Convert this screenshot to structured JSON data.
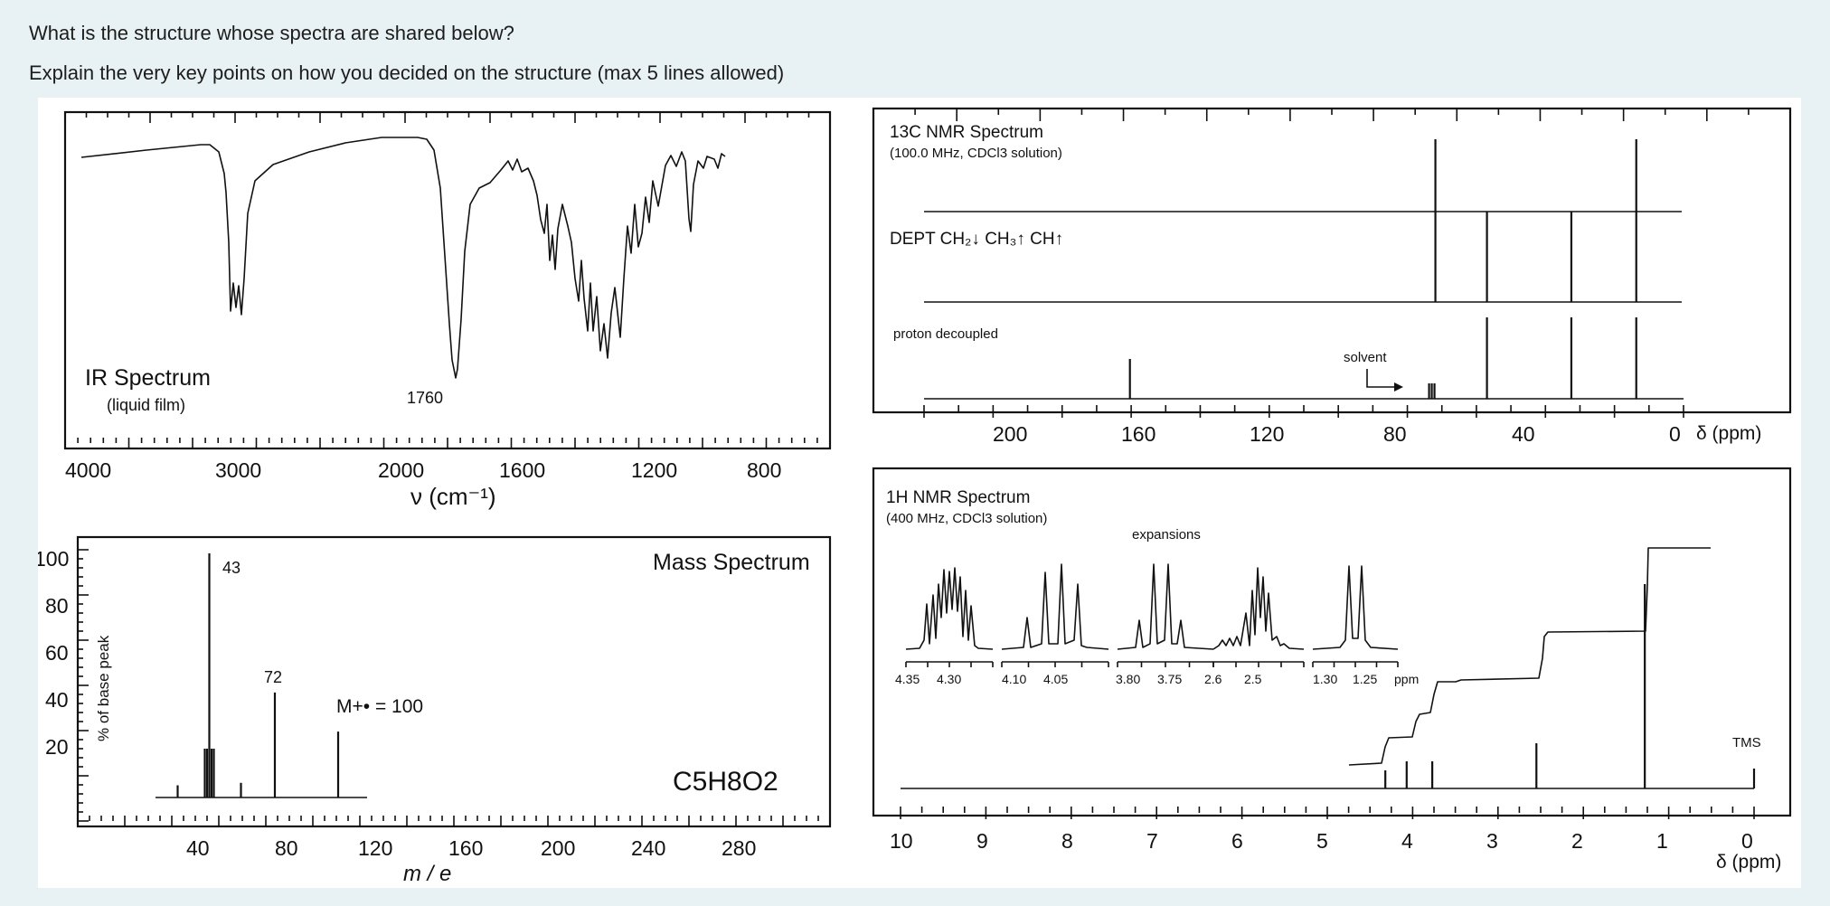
{
  "question": {
    "line1": "What is the structure whose spectra are shared below?",
    "line2": "Explain the very key points on how you decided on the structure (max 5 lines allowed)"
  },
  "ir": {
    "title": "IR Spectrum",
    "subtitle": "(liquid film)",
    "annotation": "1760",
    "xlabel": "ν  (cm⁻¹)",
    "x_ticks": [
      "4000",
      "3000",
      "2000",
      "1600",
      "1200",
      "800"
    ]
  },
  "mass": {
    "title": "Mass Spectrum",
    "ylabel": "% of base peak",
    "xlabel": "m / e",
    "formula": "C5H8O2",
    "molecular_ion_label": "M+• = 100",
    "y_ticks": [
      "100",
      "80",
      "60",
      "40",
      "20"
    ],
    "x_ticks": [
      "40",
      "80",
      "120",
      "160",
      "200",
      "240",
      "280"
    ],
    "peak_labels": [
      "43",
      "72"
    ]
  },
  "c13": {
    "title": "13C NMR Spectrum",
    "subtitle": "(100.0 MHz, CDCl3 solution)",
    "dept_label": "DEPT  CH₂↓  CH₃↑  CH↑",
    "decoupled_label": "proton decoupled",
    "solvent_label": "solvent",
    "x_ticks": [
      "200",
      "160",
      "120",
      "80",
      "40",
      "0"
    ],
    "axis_unit": "δ (ppm)"
  },
  "h1": {
    "title": "1H NMR Spectrum",
    "subtitle": "(400 MHz, CDCl3 solution)",
    "expansions_label": "expansions",
    "expansion_ticks": [
      "4.35",
      "4.30",
      "4.10",
      "4.05",
      "3.80",
      "3.75",
      "2.6",
      "2.5",
      "1.30",
      "1.25",
      "ppm"
    ],
    "tms_label": "TMS",
    "x_ticks": [
      "10",
      "9",
      "8",
      "7",
      "6",
      "5",
      "4",
      "3",
      "2",
      "1",
      "0"
    ],
    "axis_unit": "δ (ppm)"
  },
  "chart_data": [
    {
      "type": "line",
      "title": "IR Spectrum",
      "xlabel": "ν (cm⁻¹)",
      "xlim": [
        4000,
        600
      ],
      "note": "strong C=O band labeled 1760",
      "peaks_cm1": [
        2985,
        2940,
        1760,
        1370,
        1240,
        1190,
        1050,
        850
      ]
    },
    {
      "type": "bar",
      "title": "Mass Spectrum",
      "xlabel": "m / e",
      "ylabel": "% of base peak",
      "ylim": [
        0,
        100
      ],
      "x": [
        29,
        43,
        45,
        57,
        72,
        100
      ],
      "values": [
        5,
        100,
        20,
        6,
        43,
        27
      ]
    },
    {
      "type": "bar",
      "title": "13C NMR Spectrum",
      "xlabel": "δ (ppm)",
      "x_ppm": [
        170,
        77,
        60,
        34,
        14
      ],
      "dept_ch2_down": [
        60,
        34
      ],
      "dept_ch3_up": [
        14
      ]
    },
    {
      "type": "line",
      "title": "1H NMR Spectrum",
      "xlabel": "δ (ppm)",
      "signals_ppm": [
        4.32,
        4.07,
        3.77,
        2.55,
        1.28,
        0
      ]
    }
  ]
}
